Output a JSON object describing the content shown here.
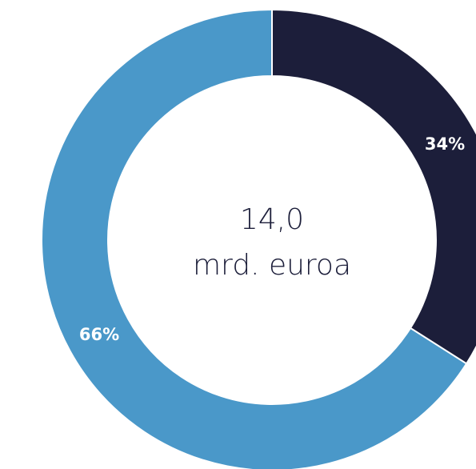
{
  "chart_data": {
    "type": "donut",
    "values": [
      34,
      66
    ],
    "value_labels": [
      "34%",
      "66%"
    ],
    "colors": [
      "#1c1e3a",
      "#4a98c9"
    ],
    "center_text": [
      "14,0",
      "mrd. euroa"
    ]
  }
}
